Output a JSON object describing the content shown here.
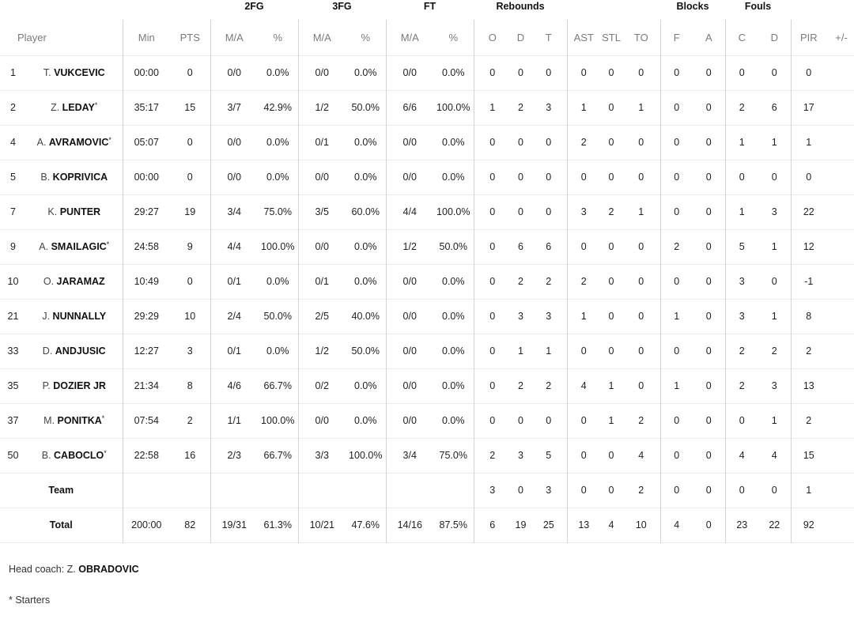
{
  "groups": {
    "fg2": "2FG",
    "fg3": "3FG",
    "ft": "FT",
    "rebounds": "Rebounds",
    "blocks": "Blocks",
    "fouls": "Fouls"
  },
  "headers": {
    "player": "Player",
    "min": "Min",
    "pts": "PTS",
    "fg2_ma": "M/A",
    "fg2_pct": "%",
    "fg3_ma": "M/A",
    "fg3_pct": "%",
    "ft_ma": "M/A",
    "ft_pct": "%",
    "reb_o": "O",
    "reb_d": "D",
    "reb_t": "T",
    "ast": "AST",
    "stl": "STL",
    "to": "TO",
    "blk_f": "F",
    "blk_a": "A",
    "foul_c": "C",
    "foul_d": "D",
    "pir": "PIR",
    "pm": "+/-"
  },
  "players": [
    {
      "num": "1",
      "init": "T.",
      "last": "VUKCEVIC",
      "star": "",
      "min": "00:00",
      "pts": "0",
      "fg2_ma": "0/0",
      "fg2_pct": "0.0%",
      "fg3_ma": "0/0",
      "fg3_pct": "0.0%",
      "ft_ma": "0/0",
      "ft_pct": "0.0%",
      "reb_o": "0",
      "reb_d": "0",
      "reb_t": "0",
      "ast": "0",
      "stl": "0",
      "to": "0",
      "blk_f": "0",
      "blk_a": "0",
      "foul_c": "0",
      "foul_d": "0",
      "pir": "0",
      "pm": ""
    },
    {
      "num": "2",
      "init": "Z.",
      "last": "LEDAY",
      "star": "*",
      "min": "35:17",
      "pts": "15",
      "fg2_ma": "3/7",
      "fg2_pct": "42.9%",
      "fg3_ma": "1/2",
      "fg3_pct": "50.0%",
      "ft_ma": "6/6",
      "ft_pct": "100.0%",
      "reb_o": "1",
      "reb_d": "2",
      "reb_t": "3",
      "ast": "1",
      "stl": "0",
      "to": "1",
      "blk_f": "0",
      "blk_a": "0",
      "foul_c": "2",
      "foul_d": "6",
      "pir": "17",
      "pm": ""
    },
    {
      "num": "4",
      "init": "A.",
      "last": "AVRAMOVIC",
      "star": "*",
      "min": "05:07",
      "pts": "0",
      "fg2_ma": "0/0",
      "fg2_pct": "0.0%",
      "fg3_ma": "0/1",
      "fg3_pct": "0.0%",
      "ft_ma": "0/0",
      "ft_pct": "0.0%",
      "reb_o": "0",
      "reb_d": "0",
      "reb_t": "0",
      "ast": "2",
      "stl": "0",
      "to": "0",
      "blk_f": "0",
      "blk_a": "0",
      "foul_c": "1",
      "foul_d": "1",
      "pir": "1",
      "pm": ""
    },
    {
      "num": "5",
      "init": "B.",
      "last": "KOPRIVICA",
      "star": "",
      "min": "00:00",
      "pts": "0",
      "fg2_ma": "0/0",
      "fg2_pct": "0.0%",
      "fg3_ma": "0/0",
      "fg3_pct": "0.0%",
      "ft_ma": "0/0",
      "ft_pct": "0.0%",
      "reb_o": "0",
      "reb_d": "0",
      "reb_t": "0",
      "ast": "0",
      "stl": "0",
      "to": "0",
      "blk_f": "0",
      "blk_a": "0",
      "foul_c": "0",
      "foul_d": "0",
      "pir": "0",
      "pm": ""
    },
    {
      "num": "7",
      "init": "K.",
      "last": "PUNTER",
      "star": "",
      "min": "29:27",
      "pts": "19",
      "fg2_ma": "3/4",
      "fg2_pct": "75.0%",
      "fg3_ma": "3/5",
      "fg3_pct": "60.0%",
      "ft_ma": "4/4",
      "ft_pct": "100.0%",
      "reb_o": "0",
      "reb_d": "0",
      "reb_t": "0",
      "ast": "3",
      "stl": "2",
      "to": "1",
      "blk_f": "0",
      "blk_a": "0",
      "foul_c": "1",
      "foul_d": "3",
      "pir": "22",
      "pm": ""
    },
    {
      "num": "9",
      "init": "A.",
      "last": "SMAILAGIC",
      "star": "*",
      "min": "24:58",
      "pts": "9",
      "fg2_ma": "4/4",
      "fg2_pct": "100.0%",
      "fg3_ma": "0/0",
      "fg3_pct": "0.0%",
      "ft_ma": "1/2",
      "ft_pct": "50.0%",
      "reb_o": "0",
      "reb_d": "6",
      "reb_t": "6",
      "ast": "0",
      "stl": "0",
      "to": "0",
      "blk_f": "2",
      "blk_a": "0",
      "foul_c": "5",
      "foul_d": "1",
      "pir": "12",
      "pm": ""
    },
    {
      "num": "10",
      "init": "O.",
      "last": "JARAMAZ",
      "star": "",
      "min": "10:49",
      "pts": "0",
      "fg2_ma": "0/1",
      "fg2_pct": "0.0%",
      "fg3_ma": "0/1",
      "fg3_pct": "0.0%",
      "ft_ma": "0/0",
      "ft_pct": "0.0%",
      "reb_o": "0",
      "reb_d": "2",
      "reb_t": "2",
      "ast": "2",
      "stl": "0",
      "to": "0",
      "blk_f": "0",
      "blk_a": "0",
      "foul_c": "3",
      "foul_d": "0",
      "pir": "-1",
      "pm": ""
    },
    {
      "num": "21",
      "init": "J.",
      "last": "NUNNALLY",
      "star": "",
      "min": "29:29",
      "pts": "10",
      "fg2_ma": "2/4",
      "fg2_pct": "50.0%",
      "fg3_ma": "2/5",
      "fg3_pct": "40.0%",
      "ft_ma": "0/0",
      "ft_pct": "0.0%",
      "reb_o": "0",
      "reb_d": "3",
      "reb_t": "3",
      "ast": "1",
      "stl": "0",
      "to": "0",
      "blk_f": "1",
      "blk_a": "0",
      "foul_c": "3",
      "foul_d": "1",
      "pir": "8",
      "pm": ""
    },
    {
      "num": "33",
      "init": "D.",
      "last": "ANDJUSIC",
      "star": "",
      "min": "12:27",
      "pts": "3",
      "fg2_ma": "0/1",
      "fg2_pct": "0.0%",
      "fg3_ma": "1/2",
      "fg3_pct": "50.0%",
      "ft_ma": "0/0",
      "ft_pct": "0.0%",
      "reb_o": "0",
      "reb_d": "1",
      "reb_t": "1",
      "ast": "0",
      "stl": "0",
      "to": "0",
      "blk_f": "0",
      "blk_a": "0",
      "foul_c": "2",
      "foul_d": "2",
      "pir": "2",
      "pm": ""
    },
    {
      "num": "35",
      "init": "P.",
      "last": "DOZIER JR",
      "star": "",
      "min": "21:34",
      "pts": "8",
      "fg2_ma": "4/6",
      "fg2_pct": "66.7%",
      "fg3_ma": "0/2",
      "fg3_pct": "0.0%",
      "ft_ma": "0/0",
      "ft_pct": "0.0%",
      "reb_o": "0",
      "reb_d": "2",
      "reb_t": "2",
      "ast": "4",
      "stl": "1",
      "to": "0",
      "blk_f": "1",
      "blk_a": "0",
      "foul_c": "2",
      "foul_d": "3",
      "pir": "13",
      "pm": ""
    },
    {
      "num": "37",
      "init": "M.",
      "last": "PONITKA",
      "star": "*",
      "min": "07:54",
      "pts": "2",
      "fg2_ma": "1/1",
      "fg2_pct": "100.0%",
      "fg3_ma": "0/0",
      "fg3_pct": "0.0%",
      "ft_ma": "0/0",
      "ft_pct": "0.0%",
      "reb_o": "0",
      "reb_d": "0",
      "reb_t": "0",
      "ast": "0",
      "stl": "1",
      "to": "2",
      "blk_f": "0",
      "blk_a": "0",
      "foul_c": "0",
      "foul_d": "1",
      "pir": "2",
      "pm": ""
    },
    {
      "num": "50",
      "init": "B.",
      "last": "CABOCLO",
      "star": "*",
      "min": "22:58",
      "pts": "16",
      "fg2_ma": "2/3",
      "fg2_pct": "66.7%",
      "fg3_ma": "3/3",
      "fg3_pct": "100.0%",
      "ft_ma": "3/4",
      "ft_pct": "75.0%",
      "reb_o": "2",
      "reb_d": "3",
      "reb_t": "5",
      "ast": "0",
      "stl": "0",
      "to": "4",
      "blk_f": "0",
      "blk_a": "0",
      "foul_c": "4",
      "foul_d": "4",
      "pir": "15",
      "pm": ""
    }
  ],
  "team": {
    "label": "Team",
    "min": "",
    "pts": "",
    "fg2_ma": "",
    "fg2_pct": "",
    "fg3_ma": "",
    "fg3_pct": "",
    "ft_ma": "",
    "ft_pct": "",
    "reb_o": "3",
    "reb_d": "0",
    "reb_t": "3",
    "ast": "0",
    "stl": "0",
    "to": "2",
    "blk_f": "0",
    "blk_a": "0",
    "foul_c": "0",
    "foul_d": "0",
    "pir": "1",
    "pm": ""
  },
  "total": {
    "label": "Total",
    "min": "200:00",
    "pts": "82",
    "fg2_ma": "19/31",
    "fg2_pct": "61.3%",
    "fg3_ma": "10/21",
    "fg3_pct": "47.6%",
    "ft_ma": "14/16",
    "ft_pct": "87.5%",
    "reb_o": "6",
    "reb_d": "19",
    "reb_t": "25",
    "ast": "13",
    "stl": "4",
    "to": "10",
    "blk_f": "4",
    "blk_a": "0",
    "foul_c": "23",
    "foul_d": "22",
    "pir": "92",
    "pm": ""
  },
  "footer": {
    "coach_label": "Head coach: Z.",
    "coach_name": "OBRADOVIC",
    "starters_note": "* Starters"
  }
}
